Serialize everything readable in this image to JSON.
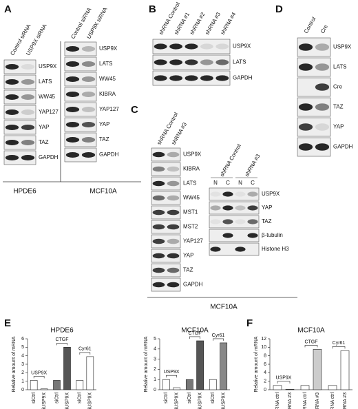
{
  "panel_a": {
    "letter": "A",
    "hpde6": {
      "lanes": [
        "Control siRNA",
        "USP9X siRNA"
      ],
      "rows": [
        "USP9X",
        "LATS",
        "WW45",
        "YAP127",
        "YAP",
        "TAZ",
        "GAPDH"
      ],
      "cell_line": "HPDE6"
    },
    "mcf10a": {
      "lanes": [
        "Control siRNA",
        "USP9X  siRNA"
      ],
      "rows": [
        "USP9X",
        "LATS",
        "WW45",
        "KIBRA",
        "YAP127",
        "YAP",
        "TAZ",
        "GAPDH"
      ],
      "cell_line": "MCF10A"
    }
  },
  "panel_b": {
    "letter": "B",
    "lanes": [
      "shRNA Control",
      "shRNA #1",
      "shRNA #2",
      "shRNA #3",
      "shRNA #4"
    ],
    "rows": [
      "USP9X",
      "LATS",
      "GAPDH"
    ]
  },
  "panel_c": {
    "letter": "C",
    "left": {
      "lanes": [
        "shRNA Control",
        "shRNA #3"
      ],
      "rows": [
        "USP9X",
        "KIBRA",
        "LATS",
        "WW45",
        "MST1",
        "MST2",
        "YAP127",
        "YAP",
        "TAZ",
        "GAPDH"
      ]
    },
    "right": {
      "groups": [
        "shRNA Control",
        "shRNA #3"
      ],
      "lanes": [
        "N",
        "C",
        "N",
        "C"
      ],
      "rows": [
        "USP9X",
        "YAP",
        "TAZ",
        "β-tubulin",
        "Histone H3"
      ]
    },
    "cell_line": "MCF10A"
  },
  "panel_d": {
    "letter": "D",
    "lanes": [
      "Control",
      "Cre"
    ],
    "rows": [
      "USP9X",
      "LATS",
      "Cre",
      "TAZ",
      "YAP",
      "GAPDH"
    ]
  },
  "panel_e": {
    "letter": "E",
    "charts": [
      {
        "type": "bar",
        "title": "HPDE6",
        "y_label": "Relative amount of mRNA",
        "categories": [
          "siCtrl",
          "siUSP9X",
          "siCtrl",
          "siUSP9X",
          "siCtrl",
          "siUSP9X"
        ],
        "values": [
          1.1,
          0.1,
          1.1,
          5.0,
          1.1,
          3.9
        ],
        "colors": [
          "#ffffff",
          "#ffffff",
          "#777777",
          "#555555",
          "#ffffff",
          "#ffffff"
        ],
        "groups": [
          "USP9X",
          "CTGF",
          "Cyr61"
        ],
        "ylim": [
          0,
          6
        ],
        "yticks": [
          0,
          1,
          2,
          3,
          4,
          5,
          6
        ]
      },
      {
        "type": "bar",
        "title": "MCF10A",
        "y_label": "Relative amount of mRNA",
        "categories": [
          "siCtrl",
          "siUSP9X",
          "siCtrl",
          "siUSP9X",
          "siCtrl",
          "siUSP9X"
        ],
        "values": [
          1.0,
          0.2,
          1.0,
          4.8,
          1.0,
          4.6
        ],
        "colors": [
          "#ffffff",
          "#ffffff",
          "#777777",
          "#555555",
          "#ffffff",
          "#888888"
        ],
        "groups": [
          "USP9X",
          "CTGF",
          "Cyr61"
        ],
        "ylim": [
          0,
          5
        ],
        "yticks": [
          0,
          1,
          2,
          3,
          4,
          5
        ]
      }
    ]
  },
  "panel_f": {
    "letter": "F",
    "charts": [
      {
        "type": "bar",
        "title": "MCF10A",
        "y_label": "Relative amount of mRNA",
        "categories": [
          "shRNA ctrl",
          "shRNA #3",
          "shRNA ctrl",
          "shRNA #3",
          "shRNA ctrl",
          "shRNA #3"
        ],
        "values": [
          1.0,
          0.1,
          1.0,
          9.5,
          1.0,
          9.2
        ],
        "colors": [
          "#ffffff",
          "#ffffff",
          "#ffffff",
          "#cccccc",
          "#ffffff",
          "#ffffff"
        ],
        "groups": [
          "USP9X",
          "CTGF",
          "Cyr61"
        ],
        "ylim": [
          0,
          12
        ],
        "yticks": [
          0,
          2,
          4,
          6,
          8,
          10,
          12
        ]
      }
    ]
  }
}
